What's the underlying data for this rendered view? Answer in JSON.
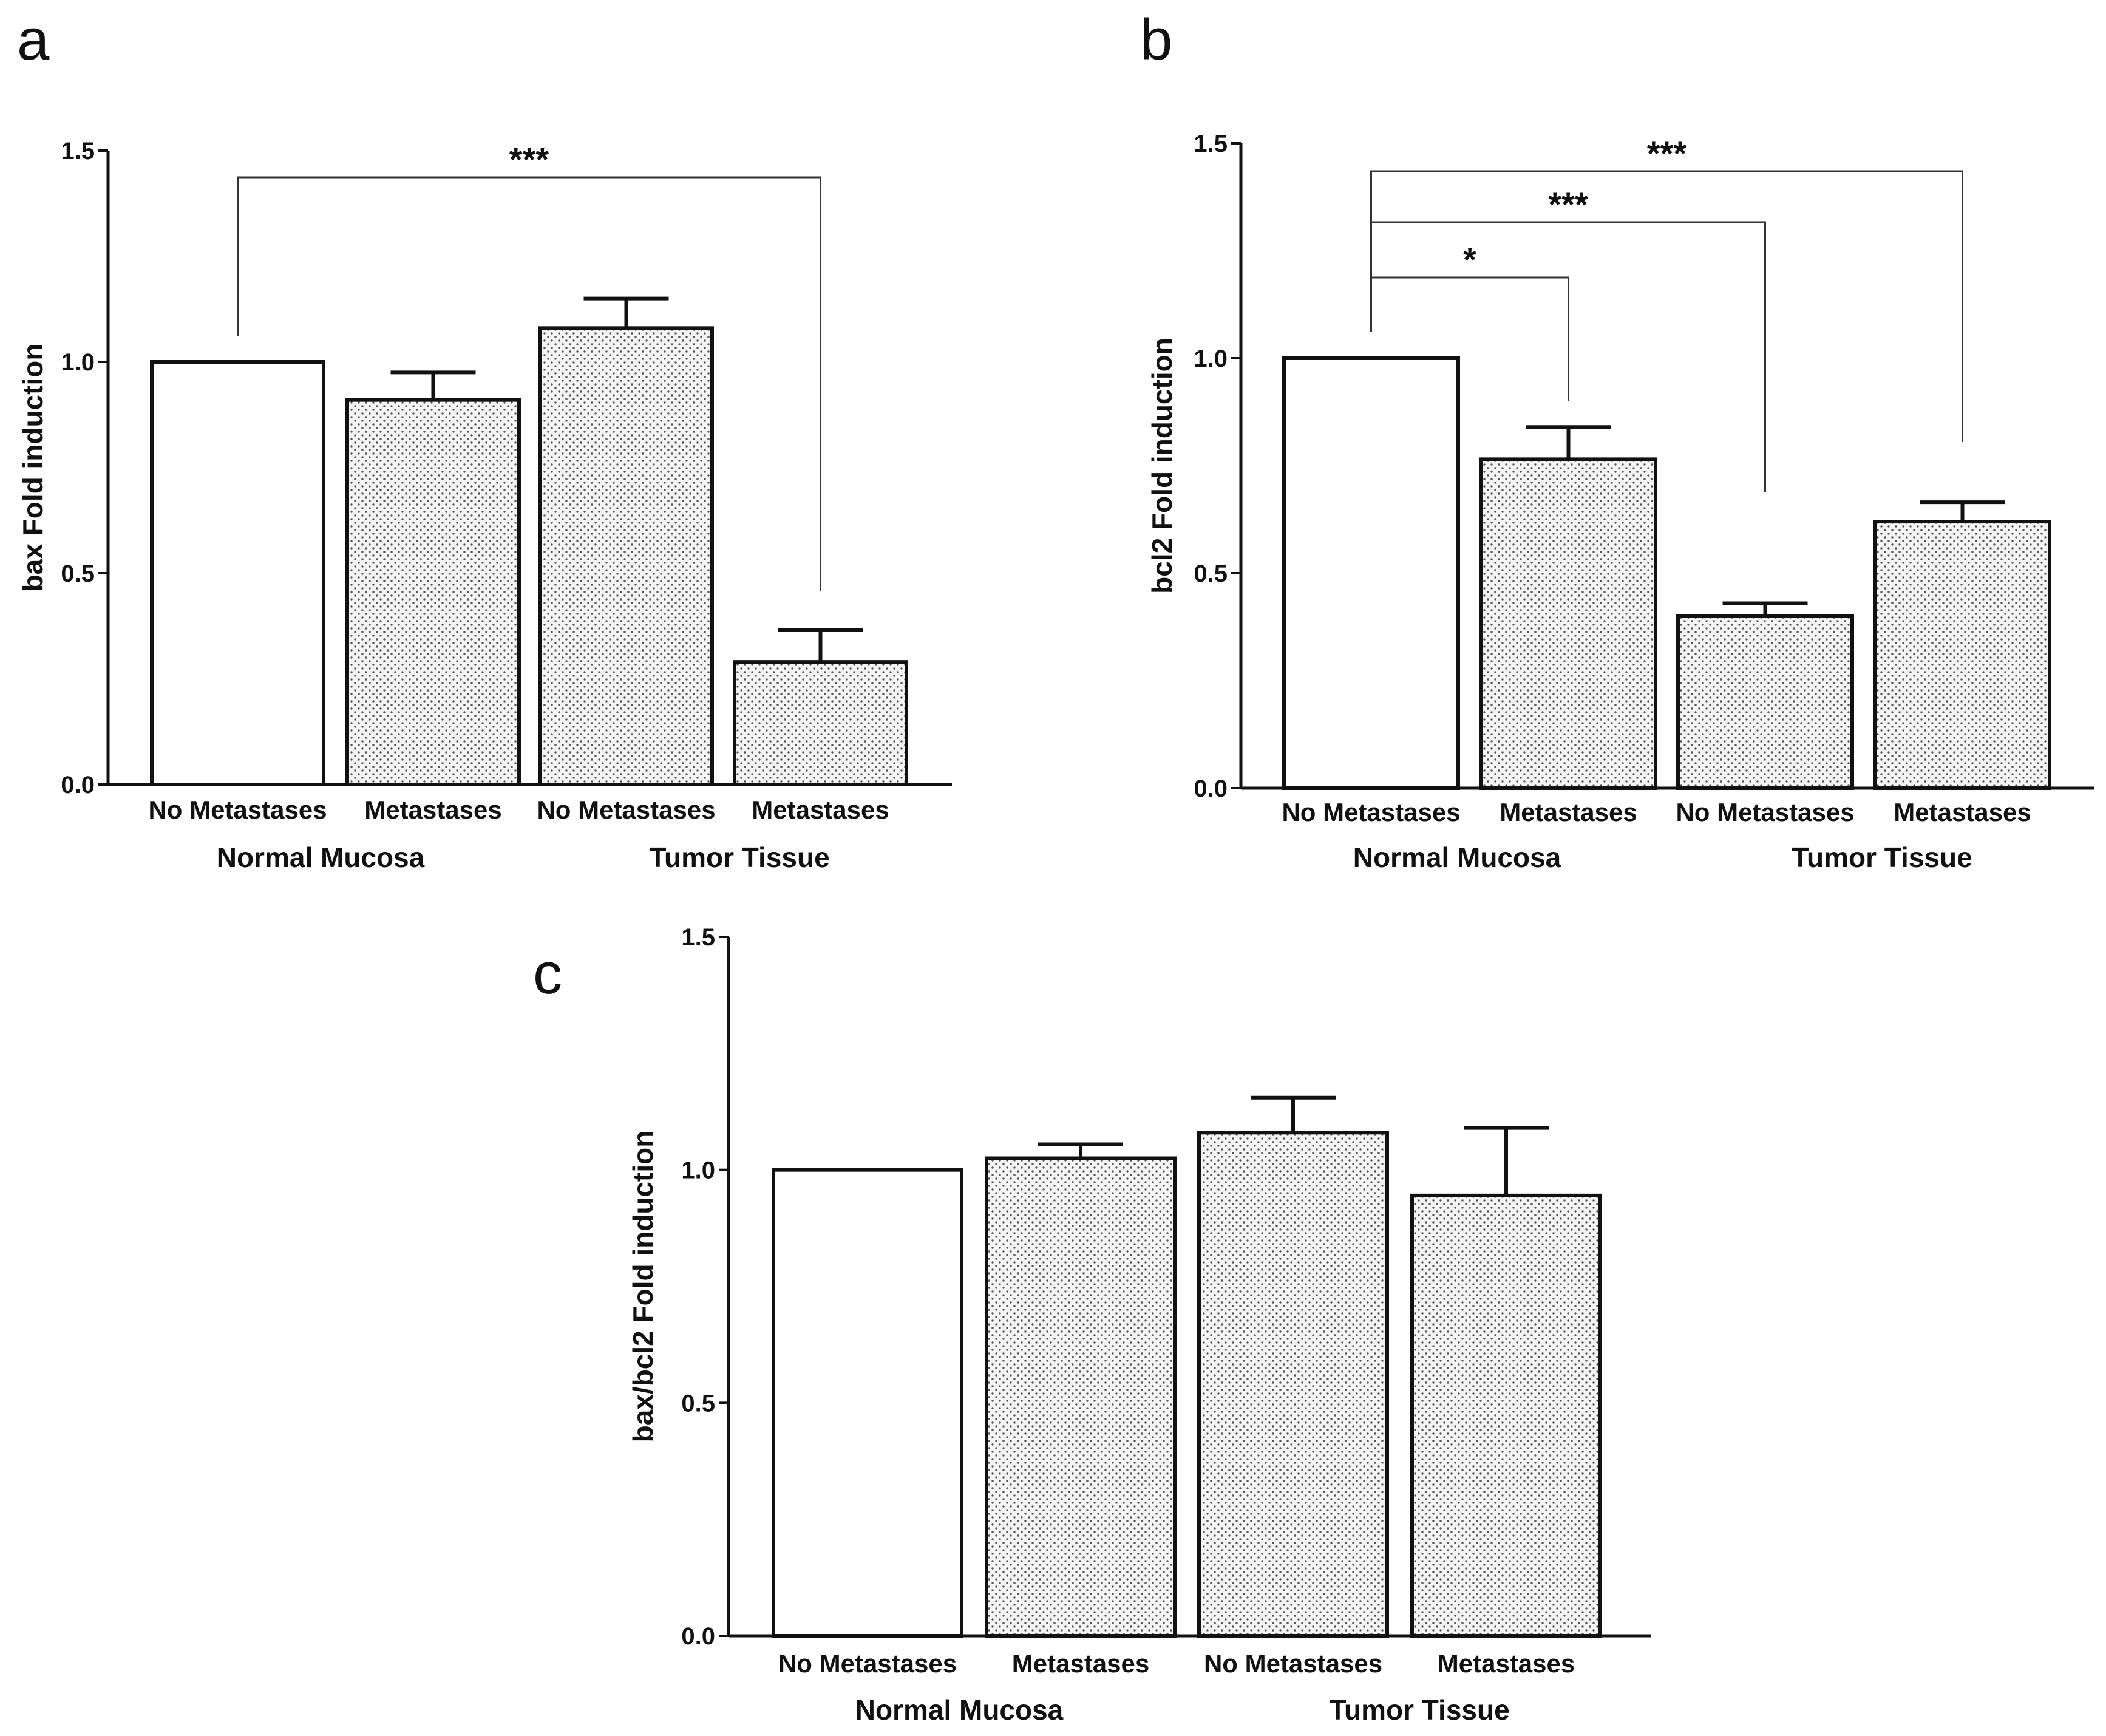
{
  "chart_data": [
    {
      "type": "bar",
      "panel": "a",
      "ylabel": "bax Fold induction",
      "ylim": [
        0,
        1.5
      ],
      "yticks": [
        "0.0",
        "0.5",
        "1.0",
        "1.5"
      ],
      "categories": [
        "No Metastases",
        "Metastases",
        "No Metastases",
        "Metastases"
      ],
      "groups": [
        {
          "label": "Normal Mucosa",
          "categories": [
            0,
            1
          ]
        },
        {
          "label": "Tumor Tissue",
          "categories": [
            2,
            3
          ]
        }
      ],
      "values": [
        1.0,
        0.91,
        1.08,
        0.29
      ],
      "errors": [
        0,
        0.065,
        0.07,
        0.075
      ],
      "fills": [
        "open",
        "dotted",
        "dotted",
        "dotted"
      ],
      "significance": [
        {
          "from": 0,
          "to": 3,
          "label": "***"
        }
      ]
    },
    {
      "type": "bar",
      "panel": "b",
      "ylabel": "bcl2 Fold induction",
      "ylim": [
        0,
        1.5
      ],
      "yticks": [
        "0.0",
        "0.5",
        "1.0",
        "1.5"
      ],
      "categories": [
        "No Metastases",
        "Metastases",
        "No Metastases",
        "Metastases"
      ],
      "groups": [
        {
          "label": "Normal Mucosa",
          "categories": [
            0,
            1
          ]
        },
        {
          "label": "Tumor Tissue",
          "categories": [
            2,
            3
          ]
        }
      ],
      "values": [
        1.0,
        0.765,
        0.4,
        0.62
      ],
      "errors": [
        0,
        0.075,
        0.03,
        0.045
      ],
      "fills": [
        "open",
        "dotted",
        "dotted",
        "dotted"
      ],
      "significance": [
        {
          "from": 0,
          "to": 1,
          "label": "*"
        },
        {
          "from": 0,
          "to": 2,
          "label": "***"
        },
        {
          "from": 0,
          "to": 3,
          "label": "***"
        }
      ]
    },
    {
      "type": "bar",
      "panel": "c",
      "ylabel": "bax/bcl2 Fold induction",
      "ylim": [
        0,
        1.5
      ],
      "yticks": [
        "0.0",
        "0.5",
        "1.0",
        "1.5"
      ],
      "categories": [
        "No Metastases",
        "Metastases",
        "No Metastases",
        "Metastases"
      ],
      "groups": [
        {
          "label": "Normal Mucosa",
          "categories": [
            0,
            1
          ]
        },
        {
          "label": "Tumor Tissue",
          "categories": [
            2,
            3
          ]
        }
      ],
      "values": [
        1.0,
        1.025,
        1.08,
        0.945
      ],
      "errors": [
        0,
        0.03,
        0.075,
        0.145
      ],
      "fills": [
        "open",
        "dotted",
        "dotted",
        "dotted"
      ],
      "significance": []
    }
  ]
}
